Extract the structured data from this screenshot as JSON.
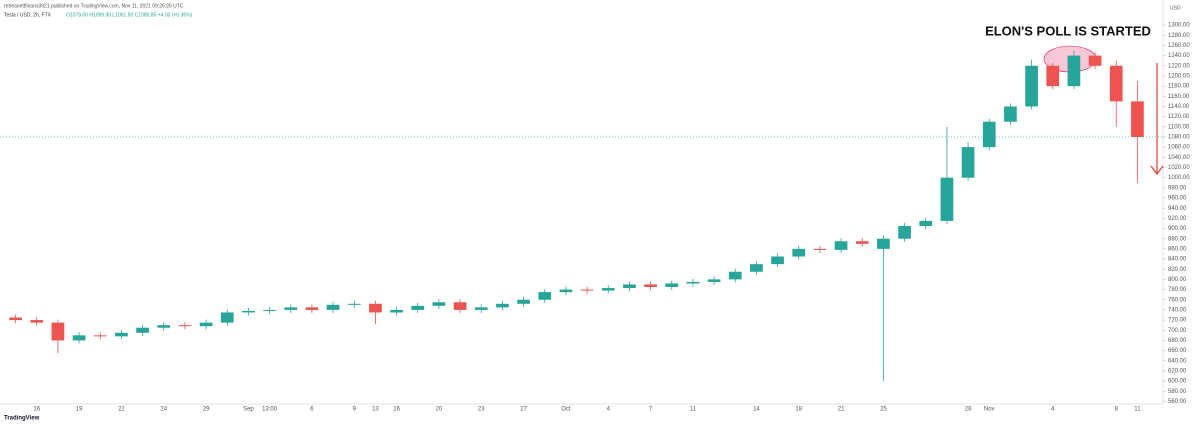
{
  "header": {
    "publisher": "rebeanettfinans3921 published on TradingView.com, Nov 11, 2021 09:26:26 UTC",
    "symbol": "Tesla / USD, 2h, FTX",
    "ohlc": "O1079.00 H1099.90 L1051.50 C1080.85 +4.00 (+0.36%)",
    "currency": "USD"
  },
  "footer": {
    "brand": "TradingView"
  },
  "chart_data": {
    "type": "candlestick",
    "annotation": "ELON'S POLL IS STARTED",
    "up_color": "#26a69a",
    "down_color": "#ef5350",
    "categories": [
      null,
      "16",
      null,
      "19",
      null,
      "22",
      null,
      "24",
      null,
      "29",
      null,
      "Sep",
      "13:00",
      null,
      "6",
      null,
      "9",
      "13",
      "16",
      null,
      "20",
      null,
      "23",
      null,
      "27",
      null,
      "Oct",
      null,
      "4",
      null,
      "7",
      null,
      "11",
      null,
      null,
      "14",
      null,
      "18",
      null,
      "21",
      null,
      "25",
      null,
      null,
      null,
      "28",
      "Nov",
      null,
      null,
      "4",
      null,
      null,
      "8",
      "11"
    ],
    "open": [
      725,
      720,
      715,
      680,
      690,
      688,
      695,
      705,
      710,
      708,
      715,
      735,
      738,
      740,
      745,
      740,
      750,
      752,
      735,
      740,
      748,
      755,
      740,
      745,
      752,
      760,
      775,
      780,
      778,
      783,
      790,
      785,
      792,
      795,
      800,
      815,
      830,
      845,
      860,
      858,
      875,
      860,
      880,
      905,
      915,
      1000,
      1060,
      1110,
      1140,
      1220,
      1180,
      1240,
      1220,
      1150
    ],
    "high": [
      731,
      726,
      721,
      696,
      696,
      701,
      711,
      716,
      716,
      721,
      741,
      744,
      746,
      751,
      751,
      756,
      758,
      758,
      746,
      754,
      761,
      761,
      751,
      758,
      766,
      781,
      786,
      786,
      789,
      796,
      796,
      798,
      801,
      806,
      821,
      836,
      851,
      866,
      866,
      881,
      881,
      886,
      911,
      921,
      1100,
      1070,
      1116,
      1146,
      1232,
      1226,
      1250,
      1246,
      1230,
      1190
    ],
    "low": [
      714,
      709,
      655,
      674,
      682,
      682,
      689,
      699,
      702,
      702,
      709,
      729,
      732,
      734,
      734,
      734,
      744,
      712,
      729,
      734,
      742,
      734,
      734,
      739,
      746,
      754,
      769,
      772,
      772,
      777,
      779,
      779,
      786,
      789,
      794,
      809,
      824,
      839,
      852,
      852,
      864,
      600,
      874,
      899,
      909,
      994,
      1054,
      1104,
      1134,
      1174,
      1174,
      1214,
      1100,
      990
    ],
    "close": [
      720,
      715,
      680,
      690,
      688,
      695,
      705,
      710,
      708,
      715,
      735,
      738,
      740,
      745,
      740,
      750,
      752,
      735,
      740,
      748,
      755,
      740,
      745,
      752,
      760,
      775,
      780,
      778,
      783,
      790,
      785,
      792,
      795,
      800,
      815,
      830,
      845,
      860,
      858,
      875,
      870,
      880,
      905,
      915,
      1000,
      1060,
      1110,
      1140,
      1220,
      1180,
      1240,
      1220,
      1150,
      1080
    ],
    "ylim": [
      555,
      1310
    ],
    "yticks": [
      {
        "value": 560,
        "label": "560.00"
      },
      {
        "value": 580,
        "label": "580.00"
      },
      {
        "value": 600,
        "label": "600.00"
      },
      {
        "value": 620,
        "label": "620.00"
      },
      {
        "value": 640,
        "label": "640.00"
      },
      {
        "value": 660,
        "label": "660.00"
      },
      {
        "value": 680,
        "label": "680.00"
      },
      {
        "value": 700,
        "label": "700.00"
      },
      {
        "value": 720,
        "label": "720.00"
      },
      {
        "value": 740,
        "label": "740.00"
      },
      {
        "value": 760,
        "label": "760.00"
      },
      {
        "value": 780,
        "label": "780.00"
      },
      {
        "value": 800,
        "label": "800.00"
      },
      {
        "value": 820,
        "label": "820.00"
      },
      {
        "value": 840,
        "label": "840.00"
      },
      {
        "value": 860,
        "label": "860.00"
      },
      {
        "value": 880,
        "label": "880.00"
      },
      {
        "value": 900,
        "label": "900.00"
      },
      {
        "value": 920,
        "label": "920.00"
      },
      {
        "value": 940,
        "label": "940.00"
      },
      {
        "value": 960,
        "label": "960.00"
      },
      {
        "value": 980,
        "label": "980.00"
      },
      {
        "value": 1000,
        "label": "1000.00"
      },
      {
        "value": 1020,
        "label": "1020.00"
      },
      {
        "value": 1040,
        "label": "1040.00"
      },
      {
        "value": 1060,
        "label": "1060.00"
      },
      {
        "value": 1080,
        "label": "1080.00"
      },
      {
        "value": 1100,
        "label": "1100.00"
      },
      {
        "value": 1120,
        "label": "1120.00"
      },
      {
        "value": 1140,
        "label": "1140.00"
      },
      {
        "value": 1160,
        "label": "1160.00"
      },
      {
        "value": 1180,
        "label": "1180.00"
      },
      {
        "value": 1200,
        "label": "1200.00"
      },
      {
        "value": 1220,
        "label": "1220.00"
      },
      {
        "value": 1240,
        "label": "1240.00"
      },
      {
        "value": 1260,
        "label": "1260.00"
      },
      {
        "value": 1280,
        "label": "1280.00"
      },
      {
        "value": 1300,
        "label": "1300.00"
      }
    ],
    "grid": false
  }
}
